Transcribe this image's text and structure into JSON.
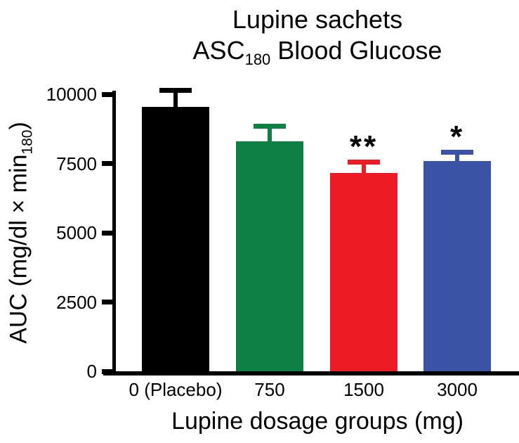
{
  "title": {
    "line1": "Lupine sachets",
    "line2_pre": "ASC",
    "line2_sub": "180",
    "line2_post": " Blood Glucose"
  },
  "y_axis": {
    "label_pre": "AUC (mg/dl × min",
    "label_sub": "180",
    "label_post": ")",
    "ticks": [
      0,
      2500,
      5000,
      7500,
      10000
    ]
  },
  "x_axis": {
    "label": "Lupine dosage groups (mg)"
  },
  "chart_data": {
    "type": "bar",
    "title": "Lupine sachets ASC180 Blood Glucose",
    "xlabel": "Lupine dosage groups (mg)",
    "ylabel": "AUC (mg/dl × min180)",
    "categories": [
      "0 (Placebo)",
      "750",
      "1500",
      "3000"
    ],
    "values": [
      9550,
      8300,
      7150,
      7600
    ],
    "errors": [
      600,
      550,
      400,
      310
    ],
    "error_direction": "upper",
    "significance": [
      "",
      "",
      "**",
      "*"
    ],
    "bar_colors": [
      "#000000",
      "#0e8043",
      "#ed1c24",
      "#3a53a4"
    ],
    "ylim": [
      0,
      10000
    ],
    "yticks": [
      0,
      2500,
      5000,
      7500,
      10000
    ],
    "grid": false,
    "legend": null
  }
}
